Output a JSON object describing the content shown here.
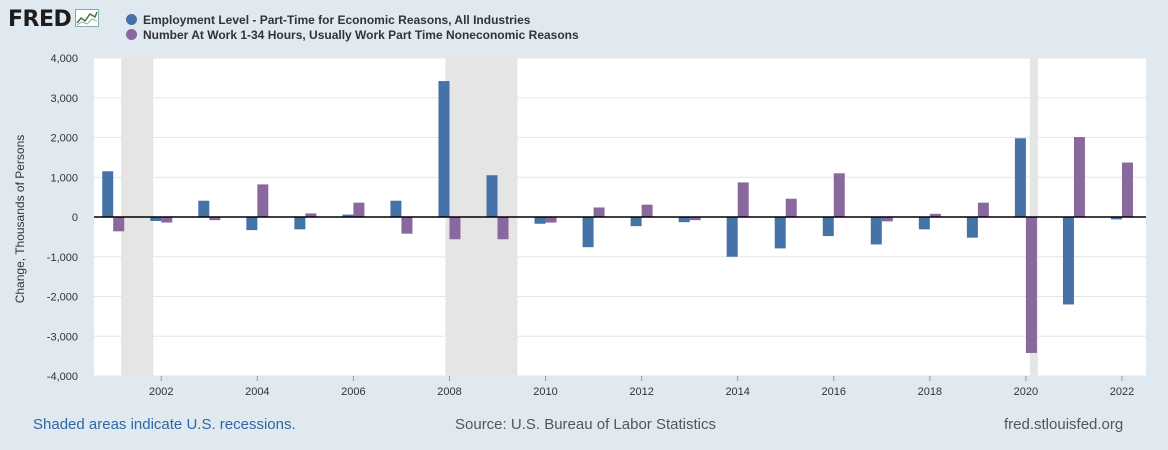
{
  "header": {
    "logo_text": "FRED"
  },
  "legend": [
    {
      "label": "Employment Level - Part-Time for Economic Reasons, All Industries",
      "color": "#4572a7"
    },
    {
      "label": "Number At Work 1-34 Hours, Usually Work Part Time Noneconomic Reasons",
      "color": "#89689e"
    }
  ],
  "footer": {
    "recession_note": "Shaded areas indicate U.S. recessions.",
    "source": "Source: U.S. Bureau of Labor Statistics",
    "site": "fred.stlouisfed.org"
  },
  "chart_data": {
    "type": "bar",
    "ylabel": "Change, Thousands of Persons",
    "xlabel": "",
    "ylim": [
      -4000,
      4000
    ],
    "yticks": [
      4000,
      3000,
      2000,
      1000,
      0,
      -1000,
      -2000,
      -3000,
      -4000
    ],
    "ytick_labels": [
      "4,000",
      "3,000",
      "2,000",
      "1,000",
      "0",
      "-1,000",
      "-2,000",
      "-3,000",
      "-4,000"
    ],
    "xtick_labels": [
      "2002",
      "2004",
      "2006",
      "2008",
      "2010",
      "2012",
      "2014",
      "2016",
      "2018",
      "2020",
      "2022"
    ],
    "grid": true,
    "categories": [
      2001,
      2002,
      2003,
      2004,
      2005,
      2006,
      2007,
      2008,
      2009,
      2010,
      2011,
      2012,
      2013,
      2014,
      2015,
      2016,
      2017,
      2018,
      2019,
      2020,
      2021,
      2022
    ],
    "series": [
      {
        "name": "Employment Level - Part-Time for Economic Reasons, All Industries",
        "color": "#4572a7",
        "values": [
          1150,
          -100,
          410,
          -330,
          -310,
          60,
          410,
          3420,
          1050,
          -170,
          -760,
          -230,
          -130,
          -1000,
          -790,
          -480,
          -690,
          -310,
          -520,
          1980,
          -2200,
          -60
        ]
      },
      {
        "name": "Number At Work 1-34 Hours, Usually Work Part Time Noneconomic Reasons",
        "color": "#89689e",
        "values": [
          -360,
          -140,
          -80,
          820,
          90,
          360,
          -420,
          -560,
          -560,
          -140,
          240,
          310,
          -80,
          870,
          460,
          1100,
          -110,
          80,
          360,
          -3420,
          2010,
          1370
        ]
      }
    ],
    "recessions": [
      [
        "2001-03",
        "2001-11"
      ],
      [
        "2007-12",
        "2009-06"
      ],
      [
        "2020-02",
        "2020-04"
      ]
    ]
  }
}
